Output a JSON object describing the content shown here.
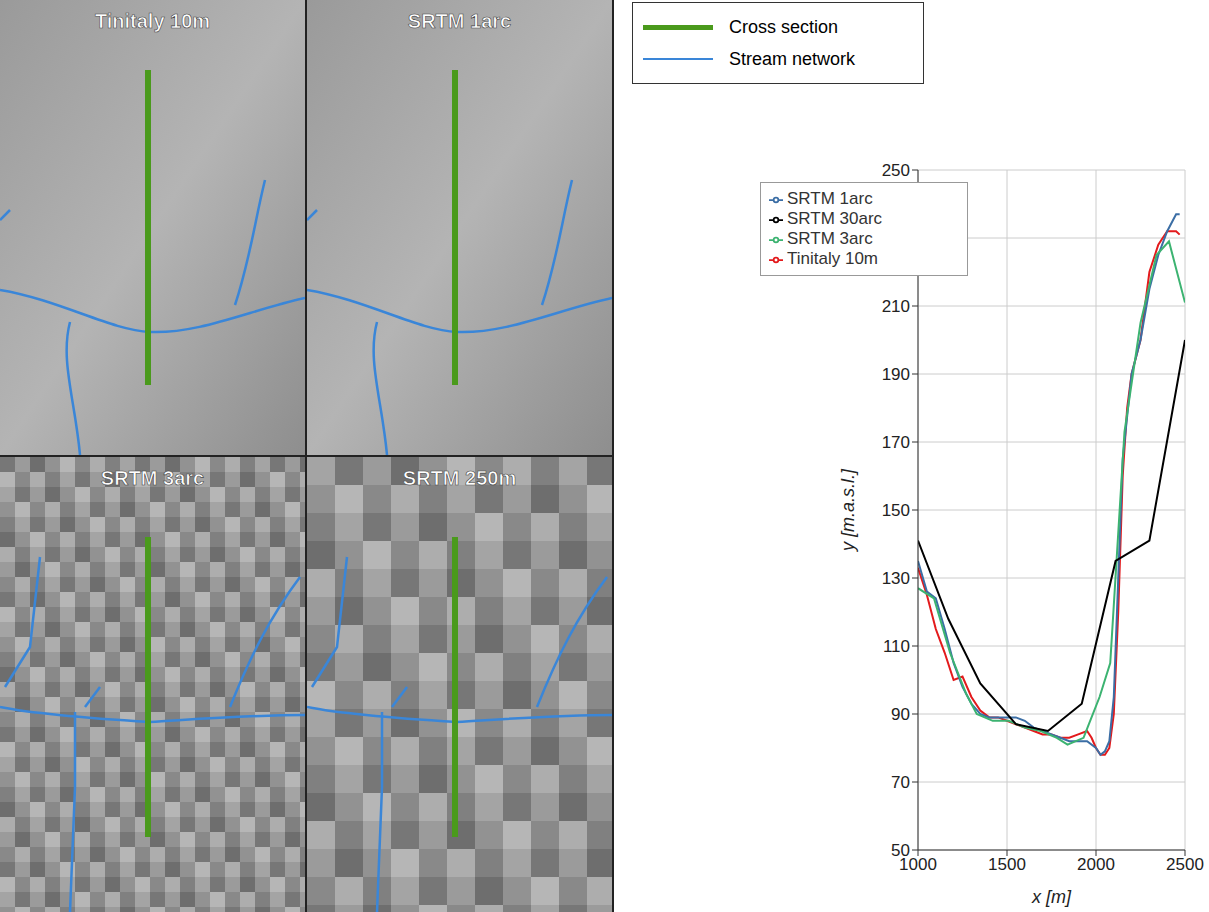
{
  "chart_data": {
    "type": "line",
    "xlabel": "x [m]",
    "ylabel": "y [m.a.s.l.]",
    "xlim": [
      1000,
      2500
    ],
    "xticks": [
      1000,
      1500,
      2000,
      2500
    ],
    "ylim": [
      50,
      250
    ],
    "yticks": [
      50,
      70,
      90,
      110,
      130,
      150,
      170,
      190,
      210,
      230,
      250
    ],
    "grid": true,
    "legend": "upper left",
    "series": [
      {
        "name": "Tinitaly 10m",
        "color": "#e31a1c",
        "x": [
          1000,
          1050,
          1100,
          1150,
          1200,
          1250,
          1300,
          1350,
          1400,
          1450,
          1500,
          1550,
          1600,
          1650,
          1700,
          1750,
          1800,
          1850,
          1900,
          1950,
          1975,
          2000,
          2025,
          2050,
          2075,
          2100,
          2125,
          2150,
          2175,
          2200,
          2250,
          2300,
          2350,
          2400,
          2450,
          2470
        ],
        "values": [
          133,
          125,
          115,
          108,
          100,
          101,
          95,
          91,
          89,
          89,
          88,
          87,
          86,
          85,
          84,
          84,
          83,
          83,
          84,
          85,
          83,
          80,
          78,
          78,
          80,
          90,
          120,
          160,
          180,
          190,
          200,
          220,
          228,
          232,
          232,
          231
        ]
      },
      {
        "name": "SRTM 1arc",
        "color": "#3b6ea5",
        "x": [
          1000,
          1050,
          1100,
          1150,
          1200,
          1250,
          1300,
          1350,
          1400,
          1450,
          1500,
          1550,
          1600,
          1650,
          1700,
          1750,
          1800,
          1850,
          1900,
          1950,
          2000,
          2025,
          2050,
          2075,
          2100,
          2125,
          2150,
          2200,
          2250,
          2300,
          2350,
          2400,
          2450,
          2470
        ],
        "values": [
          135,
          126,
          124,
          115,
          105,
          98,
          93,
          90,
          89,
          89,
          89,
          89,
          88,
          86,
          85,
          84,
          83,
          82,
          82,
          82,
          80,
          78,
          79,
          82,
          95,
          130,
          165,
          190,
          200,
          215,
          225,
          232,
          237,
          237
        ]
      },
      {
        "name": "SRTM 3arc",
        "color": "#3cb371",
        "x": [
          1000,
          1090,
          1180,
          1270,
          1330,
          1420,
          1510,
          1600,
          1690,
          1780,
          1840,
          1930,
          1960,
          2020,
          2080,
          2160,
          2250,
          2340,
          2410,
          2500
        ],
        "values": [
          127,
          124,
          108,
          96,
          90,
          88,
          88,
          86,
          85,
          83,
          81,
          83,
          87,
          95,
          105,
          173,
          205,
          225,
          229,
          211
        ]
      },
      {
        "name": "SRTM 30arc",
        "color": "#000000",
        "x": [
          1000,
          1170,
          1350,
          1550,
          1730,
          1920,
          2110,
          2300,
          2500
        ],
        "values": [
          141,
          118,
          99,
          87,
          85,
          93,
          135,
          141,
          200
        ]
      }
    ]
  },
  "panels": [
    {
      "title": "Tinitaly 10m"
    },
    {
      "title": "SRTM 1arc"
    },
    {
      "title": "SRTM 3arc"
    },
    {
      "title": "SRTM 250m"
    }
  ],
  "map_legend": [
    {
      "label": "Cross section",
      "color": "#4a9a1c"
    },
    {
      "label": "Stream network",
      "color": "#3a86d8"
    }
  ]
}
